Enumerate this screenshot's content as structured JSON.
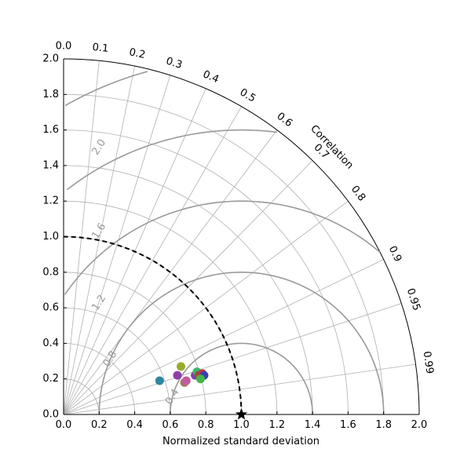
{
  "chart_data": {
    "type": "scatter",
    "subtype": "taylor-diagram",
    "title": "",
    "xlabel": "Normalized standard deviation",
    "ylabel": "",
    "angular_axis_label": "Correlation",
    "std_range": [
      0,
      2.0
    ],
    "std_ticks": [
      "0.0",
      "0.2",
      "0.4",
      "0.6",
      "0.8",
      "1.0",
      "1.2",
      "1.4",
      "1.6",
      "1.8",
      "2.0"
    ],
    "correlation_ticks": [
      "0.0",
      "0.1",
      "0.2",
      "0.3",
      "0.4",
      "0.5",
      "0.6",
      "0.7",
      "0.8",
      "0.9",
      "0.95",
      "0.99"
    ],
    "rmsd_contours": [
      0.4,
      0.8,
      1.2,
      1.6,
      2.0
    ],
    "rmsd_labels": [
      "0.4",
      "0.8",
      "1.2",
      "1.6",
      "2.0"
    ],
    "reference": {
      "std": 1.0,
      "correlation": 1.0,
      "marker": "star"
    },
    "reference_std_arc": {
      "std": 1.0,
      "style": "dashed"
    },
    "grid": true,
    "colors": {
      "grid": "#b0b0b0",
      "rmsd": "#999999",
      "axis": "#000000",
      "reference_arc": "#000000"
    },
    "points": [
      {
        "x": 0.54,
        "y": 0.19,
        "color": "#2e86a0"
      },
      {
        "x": 0.64,
        "y": 0.22,
        "color": "#8e3fa6"
      },
      {
        "x": 0.66,
        "y": 0.27,
        "color": "#9aab2e"
      },
      {
        "x": 0.68,
        "y": 0.18,
        "color": "#a0785a"
      },
      {
        "x": 0.69,
        "y": 0.19,
        "color": "#c35aa0"
      },
      {
        "x": 0.74,
        "y": 0.22,
        "color": "#7a3fb5"
      },
      {
        "x": 0.75,
        "y": 0.24,
        "color": "#3fb56a"
      },
      {
        "x": 0.76,
        "y": 0.22,
        "color": "#a04f2e"
      },
      {
        "x": 0.78,
        "y": 0.23,
        "color": "#c8323c"
      },
      {
        "x": 0.79,
        "y": 0.22,
        "color": "#3a3fb0"
      },
      {
        "x": 0.77,
        "y": 0.2,
        "color": "#45b54a"
      }
    ]
  }
}
